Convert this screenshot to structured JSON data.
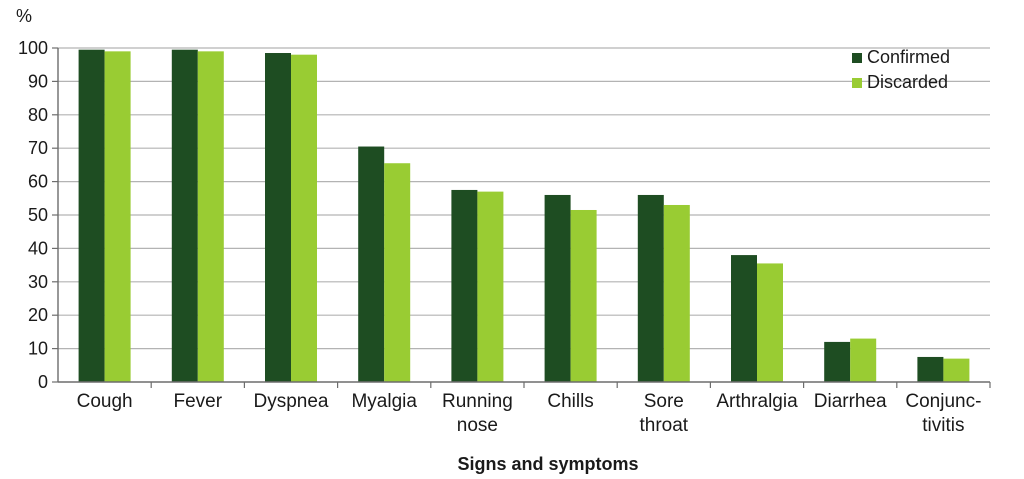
{
  "chart_data": {
    "type": "bar",
    "title": "",
    "ylabel": "%",
    "xlabel": "Signs and symptoms",
    "ylim": [
      0,
      100
    ],
    "yticks": [
      0,
      10,
      20,
      30,
      40,
      50,
      60,
      70,
      80,
      90,
      100
    ],
    "categories": [
      [
        "Cough"
      ],
      [
        "Fever"
      ],
      [
        "Dyspnea"
      ],
      [
        "Myalgia"
      ],
      [
        "Running",
        "nose"
      ],
      [
        "Chills"
      ],
      [
        "Sore",
        "throat"
      ],
      [
        "Arthralgia"
      ],
      [
        "Diarrhea"
      ],
      [
        "Conjunc-",
        "tivitis"
      ]
    ],
    "series": [
      {
        "name": "Confirmed",
        "color": "#1e4d22",
        "values": [
          99.5,
          99.5,
          98.5,
          70.5,
          57.5,
          56,
          56,
          38,
          12,
          7.5
        ]
      },
      {
        "name": "Discarded",
        "color": "#99cc33",
        "values": [
          99,
          99,
          98,
          65.5,
          57,
          51.5,
          53,
          35.5,
          13,
          7
        ]
      }
    ],
    "grid": true,
    "legend_position": "top-right"
  }
}
